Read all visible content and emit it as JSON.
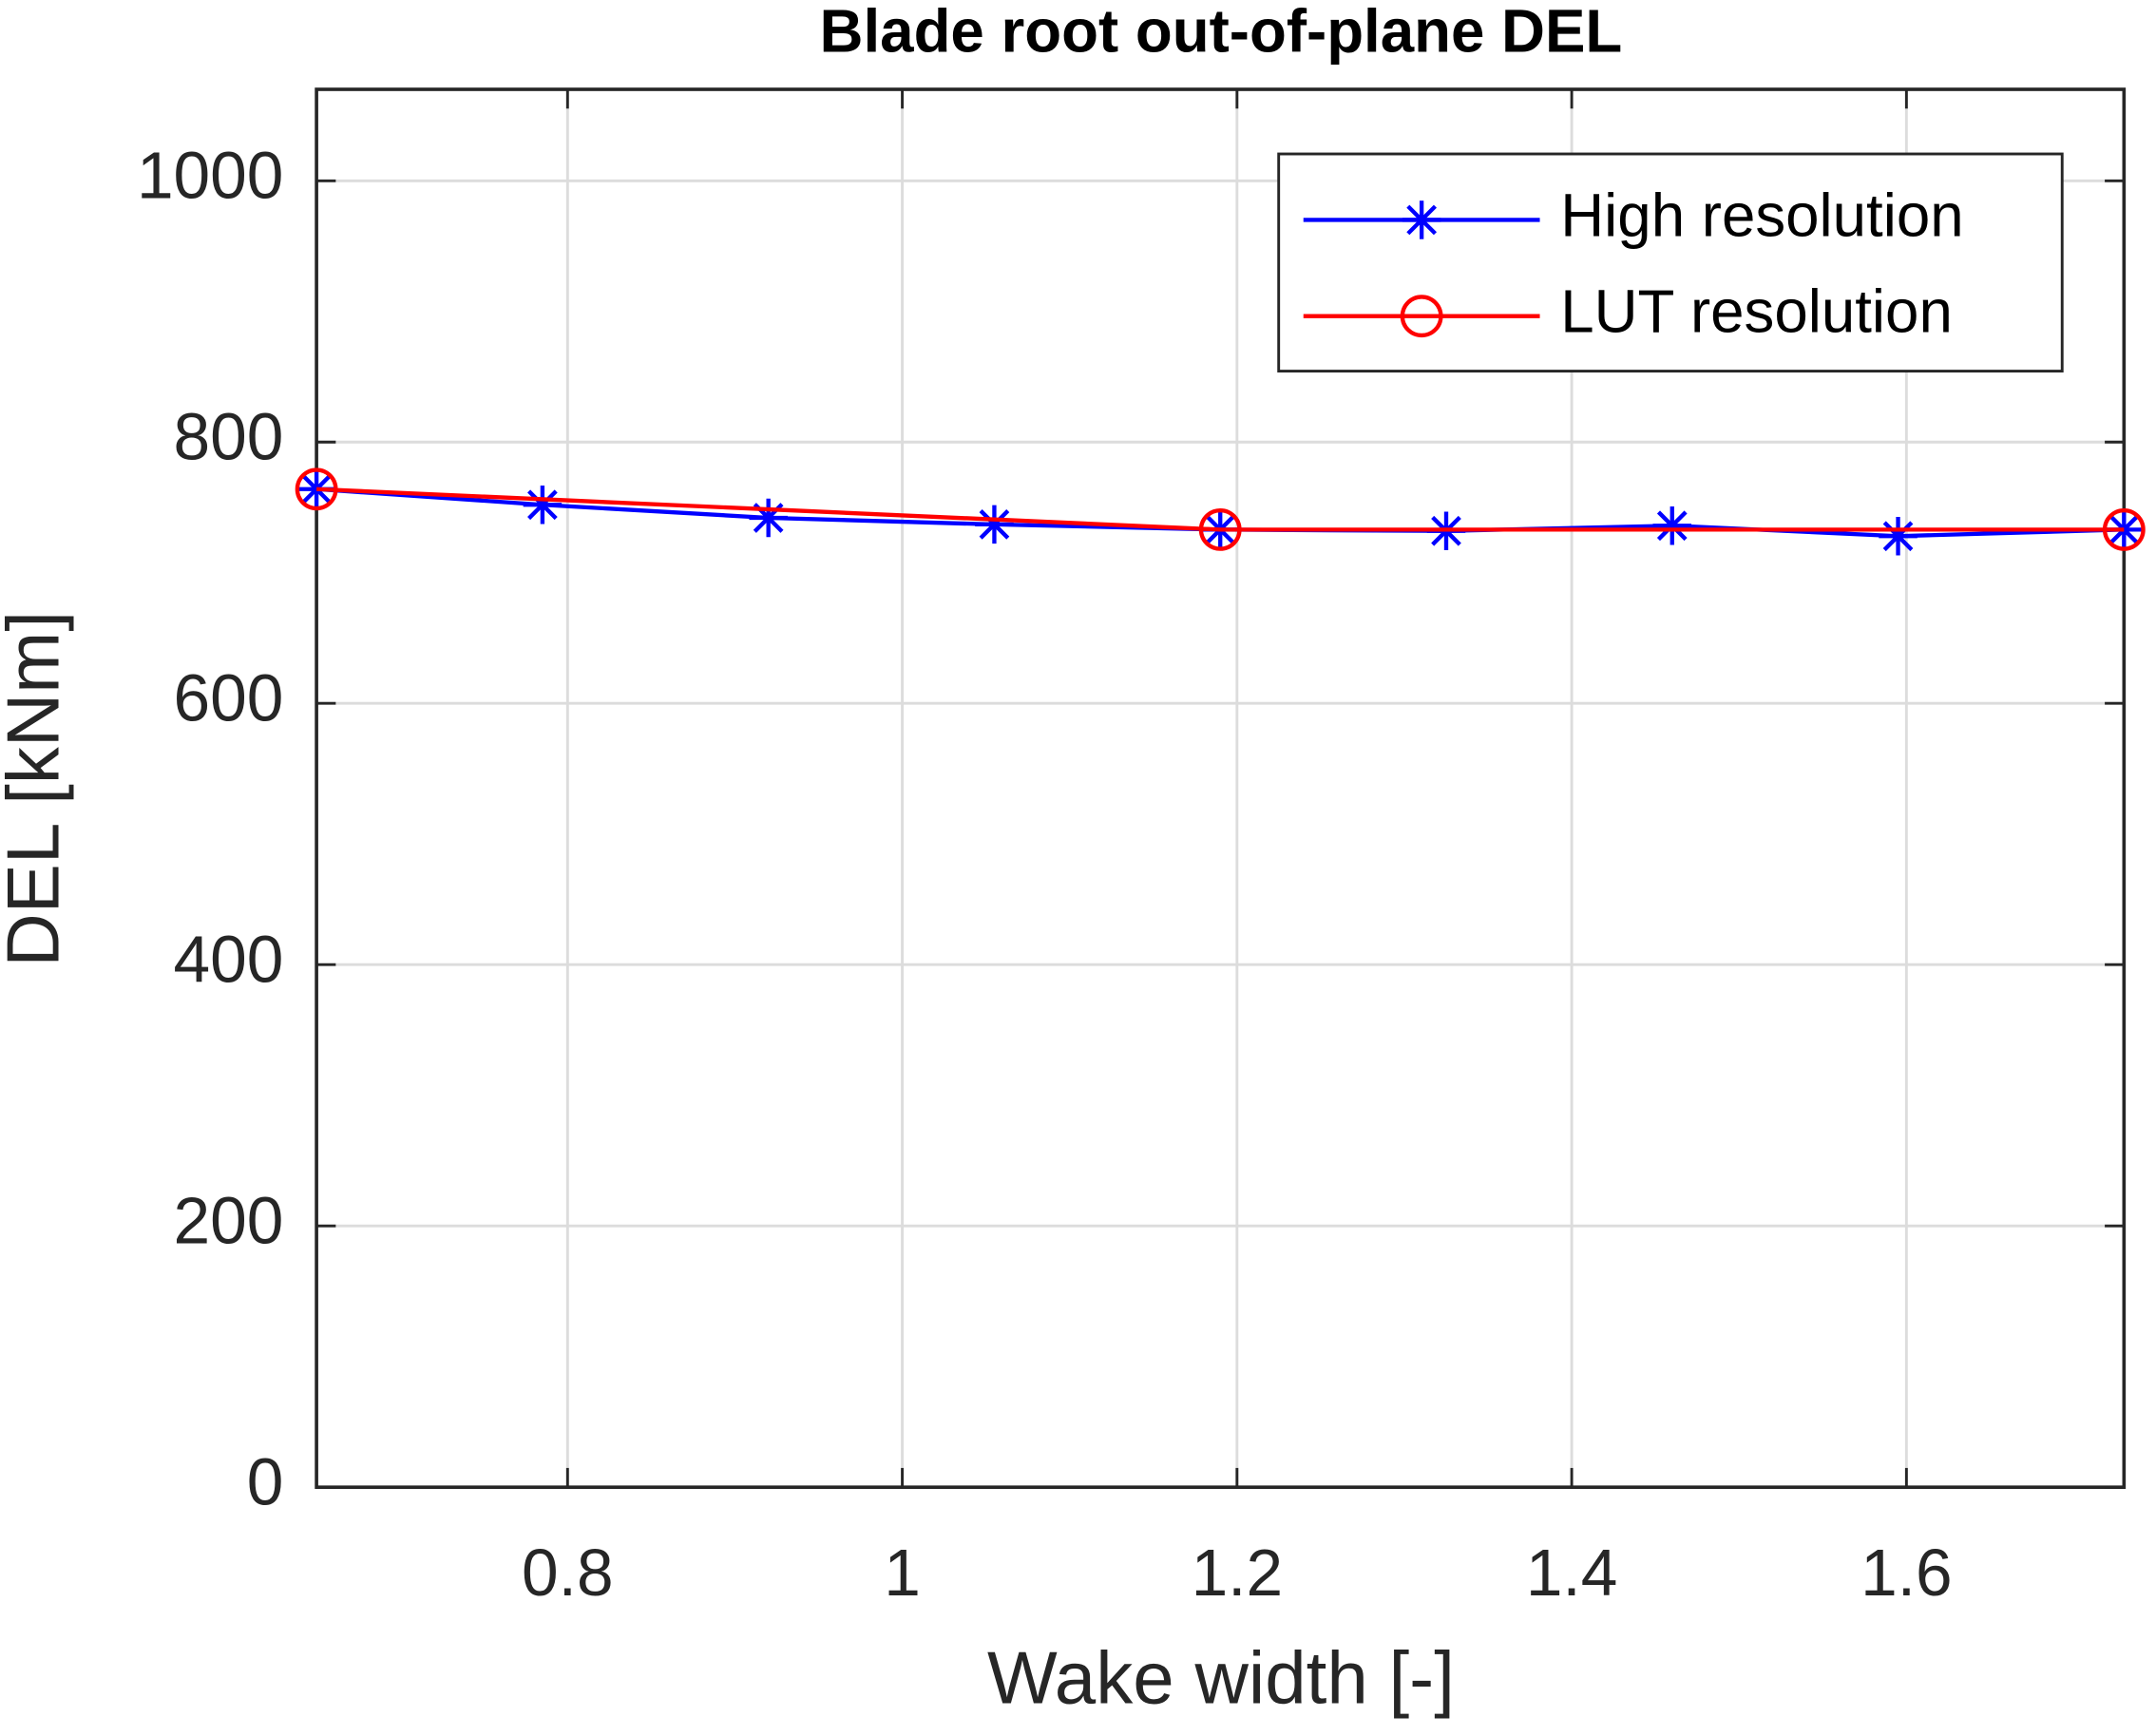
{
  "chart_data": {
    "type": "line",
    "title": "Blade root out-of-plane DEL",
    "x_label": "Wake width [-]",
    "y_label": "DEL [kNm]",
    "xlim": [
      0.65,
      1.73
    ],
    "xticks": [
      0.8,
      1,
      1.2,
      1.4,
      1.6
    ],
    "ylim": [
      0,
      1070
    ],
    "yticks": [
      0,
      200,
      400,
      600,
      800,
      1000
    ],
    "grid": true,
    "legend_position": "upper right",
    "series": [
      {
        "name": "High resolution",
        "color": "#0000ff",
        "marker": "asterisk",
        "x": [
          0.65,
          0.785,
          0.92,
          1.055,
          1.19,
          1.325,
          1.46,
          1.595,
          1.73
        ],
        "values": [
          764,
          752,
          742,
          737,
          733,
          732,
          736,
          728,
          733
        ]
      },
      {
        "name": "LUT resolution",
        "color": "#ff0000",
        "marker": "circle",
        "x": [
          0.65,
          1.19,
          1.73
        ],
        "values": [
          764,
          733,
          733
        ]
      }
    ]
  }
}
